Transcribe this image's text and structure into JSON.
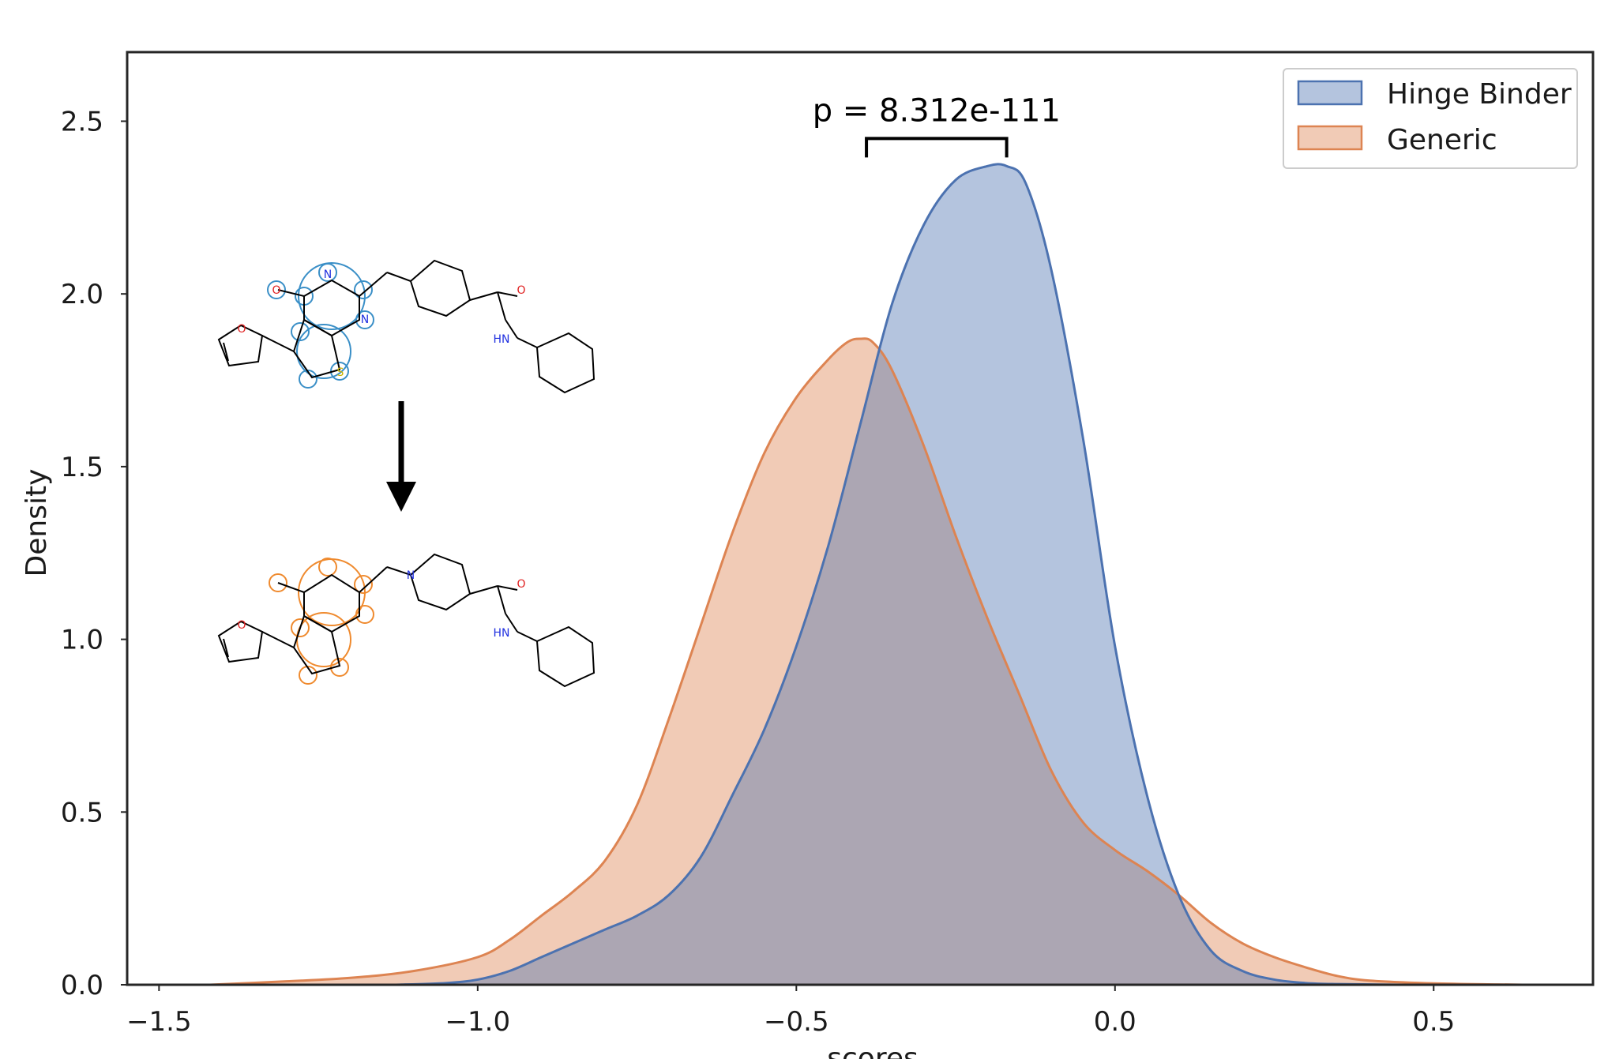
{
  "chart_data": {
    "type": "area",
    "title": "",
    "xlabel": "scores",
    "ylabel": "Density",
    "xlim": [
      -1.55,
      0.75
    ],
    "ylim": [
      0.0,
      2.7
    ],
    "xticks": [
      -1.5,
      -1.0,
      -0.5,
      0.0,
      0.5
    ],
    "xtick_labels": [
      "−1.5",
      "−1.0",
      "−0.5",
      "0.0",
      "0.5"
    ],
    "yticks": [
      0.0,
      0.5,
      1.0,
      1.5,
      2.0,
      2.5
    ],
    "ytick_labels": [
      "0.0",
      "0.5",
      "1.0",
      "1.5",
      "2.0",
      "2.5"
    ],
    "grid": false,
    "legend_position": "top-right",
    "series": [
      {
        "name": "Hinge Binder",
        "color": "#4c72b0",
        "x": [
          -1.13,
          -1.05,
          -1.0,
          -0.95,
          -0.9,
          -0.85,
          -0.8,
          -0.75,
          -0.7,
          -0.65,
          -0.6,
          -0.55,
          -0.5,
          -0.45,
          -0.4,
          -0.35,
          -0.3,
          -0.25,
          -0.2,
          -0.17,
          -0.14,
          -0.1,
          -0.05,
          0.0,
          0.05,
          0.1,
          0.15,
          0.2,
          0.25,
          0.3,
          0.35,
          0.45,
          0.55
        ],
        "y": [
          0.0,
          0.005,
          0.015,
          0.04,
          0.08,
          0.12,
          0.16,
          0.2,
          0.26,
          0.37,
          0.55,
          0.74,
          0.98,
          1.27,
          1.62,
          1.97,
          2.2,
          2.33,
          2.37,
          2.37,
          2.32,
          2.07,
          1.58,
          0.98,
          0.55,
          0.26,
          0.1,
          0.04,
          0.015,
          0.005,
          0.002,
          0.0,
          0.0
        ]
      },
      {
        "name": "Generic",
        "color": "#dd8452",
        "x": [
          -1.42,
          -1.3,
          -1.2,
          -1.1,
          -1.0,
          -0.95,
          -0.9,
          -0.85,
          -0.8,
          -0.75,
          -0.7,
          -0.65,
          -0.6,
          -0.55,
          -0.5,
          -0.45,
          -0.42,
          -0.4,
          -0.38,
          -0.35,
          -0.3,
          -0.25,
          -0.2,
          -0.15,
          -0.1,
          -0.05,
          0.0,
          0.05,
          0.1,
          0.15,
          0.2,
          0.25,
          0.3,
          0.35,
          0.4,
          0.5,
          0.6,
          0.64
        ],
        "y": [
          0.0,
          0.01,
          0.02,
          0.04,
          0.08,
          0.13,
          0.2,
          0.27,
          0.36,
          0.52,
          0.77,
          1.04,
          1.31,
          1.54,
          1.7,
          1.81,
          1.86,
          1.87,
          1.86,
          1.78,
          1.56,
          1.3,
          1.06,
          0.84,
          0.62,
          0.47,
          0.39,
          0.33,
          0.26,
          0.18,
          0.12,
          0.08,
          0.05,
          0.025,
          0.012,
          0.004,
          0.001,
          0.0
        ]
      }
    ],
    "annotation": {
      "text": "p = 8.312e-111",
      "bracket_x": [
        -0.39,
        -0.17
      ],
      "bracket_y": 2.45
    }
  },
  "molecules": {
    "top": {
      "atoms": [
        "O",
        "O",
        "S",
        "N",
        "N",
        "O",
        "HN"
      ],
      "highlight_color": "#3a8fc7"
    },
    "bottom": {
      "atoms": [
        "O",
        "N",
        "O",
        "HN"
      ],
      "highlight_color": "#ef8a2e"
    },
    "arrow": "down-arrow-icon"
  }
}
